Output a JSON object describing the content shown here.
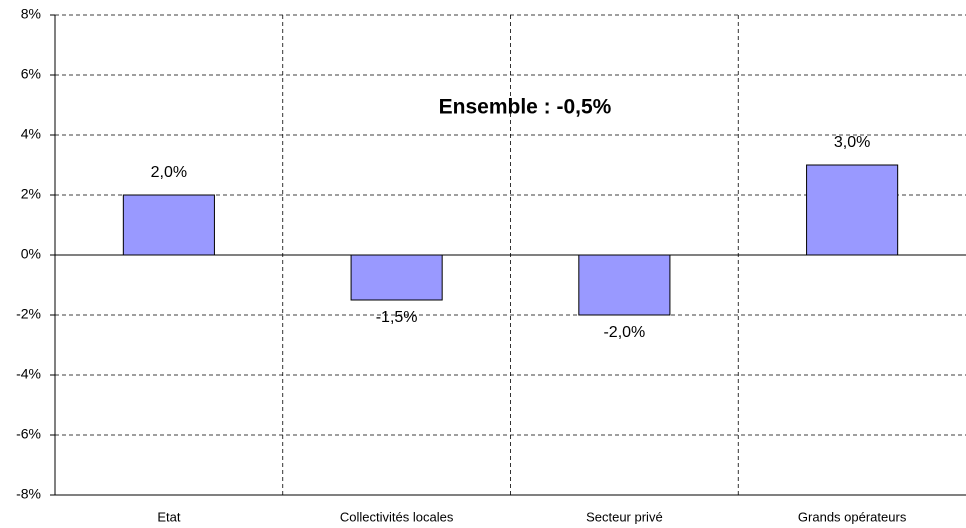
{
  "chart_data": {
    "type": "bar",
    "annotation": "Ensemble : -0,5%",
    "categories": [
      "Etat",
      "Collectivités locales",
      "Secteur privé",
      "Grands opérateurs"
    ],
    "values": [
      2.0,
      -1.5,
      -2.0,
      3.0
    ],
    "value_labels": [
      "2,0%",
      "-1,5%",
      "-2,0%",
      "3,0%"
    ],
    "color": "#9999ff",
    "ylim": [
      -8,
      8
    ],
    "yticks": [
      {
        "value": -8,
        "label": "-8%"
      },
      {
        "value": -6,
        "label": "-6%"
      },
      {
        "value": -4,
        "label": "-4%"
      },
      {
        "value": -2,
        "label": "-2%"
      },
      {
        "value": 0,
        "label": "0%"
      },
      {
        "value": 2,
        "label": "2%"
      },
      {
        "value": 4,
        "label": "4%"
      },
      {
        "value": 6,
        "label": "6%"
      },
      {
        "value": 8,
        "label": "8%"
      }
    ],
    "grid": true
  }
}
